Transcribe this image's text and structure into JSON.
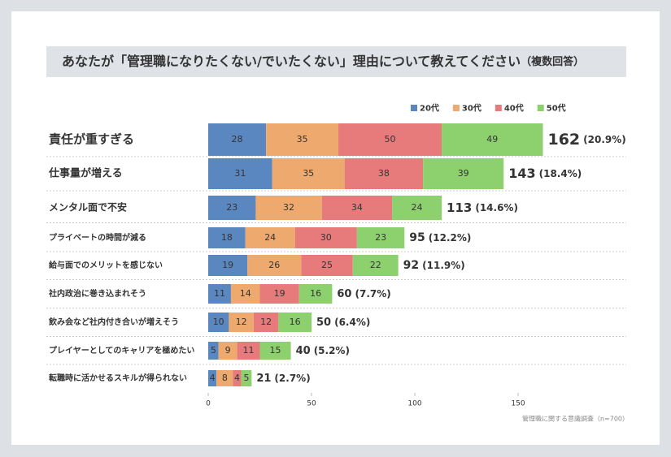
{
  "chart_data": {
    "type": "stacked-bar-horizontal",
    "title": "あなたが「管理職になりたくない/でいたくない」理由について教えてください",
    "title_note": "（複数回答）",
    "categories": [
      "責任が重すぎる",
      "仕事量が増える",
      "メンタル面で不安",
      "プライベートの時間が減る",
      "給与面でのメリットを感じない",
      "社内政治に巻き込まれそう",
      "飲み会など社内付き合いが増えそう",
      "プレイヤーとしてのキャリアを極めたい",
      "転職時に活かせるスキルが得られない"
    ],
    "series": [
      {
        "name": "20代",
        "color": "#5b87c0",
        "values": [
          28,
          31,
          23,
          18,
          19,
          11,
          10,
          5,
          4
        ]
      },
      {
        "name": "30代",
        "color": "#eeaa6e",
        "values": [
          35,
          35,
          32,
          24,
          26,
          14,
          12,
          9,
          8
        ]
      },
      {
        "name": "40代",
        "color": "#e77b7b",
        "values": [
          50,
          38,
          34,
          30,
          25,
          19,
          12,
          11,
          4
        ]
      },
      {
        "name": "50代",
        "color": "#8dd16f",
        "values": [
          49,
          39,
          24,
          23,
          22,
          16,
          16,
          15,
          5
        ]
      }
    ],
    "totals": {
      "values": [
        162,
        143,
        113,
        95,
        92,
        60,
        50,
        40,
        21
      ]
    },
    "shares": {
      "values": [
        20.9,
        18.4,
        14.6,
        12.2,
        11.9,
        7.7,
        6.4,
        5.2,
        2.7
      ],
      "value_labels": [
        "(20.9%)",
        "(18.4%)",
        "(14.6%)",
        "(12.2%)",
        "(11.9%)",
        "(7.7%)",
        "(6.4%)",
        "(5.2%)",
        "(2.7%)"
      ]
    },
    "xlim": [
      0,
      170
    ],
    "xticks": [
      0,
      50,
      100,
      150
    ],
    "source": "管理職に関する意識調査（n=700）",
    "legend": "top-right"
  }
}
